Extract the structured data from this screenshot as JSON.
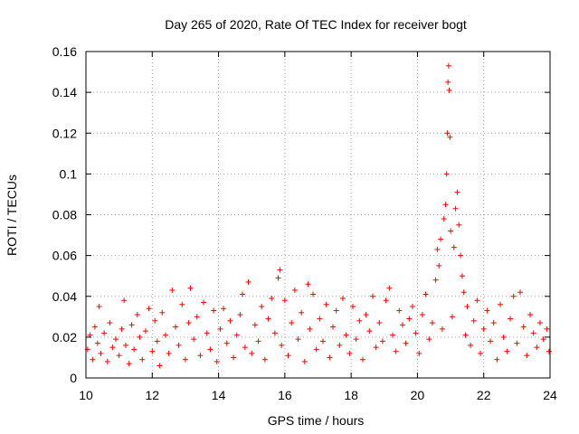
{
  "chart_data": {
    "type": "scatter",
    "title": "Day 265 of 2020, Rate Of TEC Index for receiver bogt",
    "xlabel": "GPS time / hours",
    "ylabel": "ROTI / TECUs",
    "xlim": [
      10,
      24
    ],
    "ylim": [
      0,
      0.16
    ],
    "xticks": [
      "10",
      "12",
      "14",
      "16",
      "18",
      "20",
      "22",
      "24"
    ],
    "yticks": [
      "0",
      "0.02",
      "0.04",
      "0.06",
      "0.08",
      "0.1",
      "0.12",
      "0.14",
      "0.16"
    ],
    "grid": true,
    "marker": "+",
    "series_color": "#ff0000",
    "series": [
      {
        "name": "ROTI",
        "points": [
          [
            10.05,
            0.014
          ],
          [
            10.12,
            0.021
          ],
          [
            10.2,
            0.009
          ],
          [
            10.27,
            0.025
          ],
          [
            10.35,
            0.017
          ],
          [
            10.4,
            0.035
          ],
          [
            10.45,
            0.012
          ],
          [
            10.55,
            0.022
          ],
          [
            10.65,
            0.008
          ],
          [
            10.72,
            0.027
          ],
          [
            10.8,
            0.015
          ],
          [
            10.9,
            0.019
          ],
          [
            11.0,
            0.011
          ],
          [
            11.08,
            0.024
          ],
          [
            11.15,
            0.038
          ],
          [
            11.2,
            0.016
          ],
          [
            11.3,
            0.007
          ],
          [
            11.38,
            0.026
          ],
          [
            11.45,
            0.014
          ],
          [
            11.55,
            0.031
          ],
          [
            11.62,
            0.02
          ],
          [
            11.7,
            0.009
          ],
          [
            11.8,
            0.023
          ],
          [
            11.9,
            0.034
          ],
          [
            12.0,
            0.013
          ],
          [
            12.08,
            0.028
          ],
          [
            12.15,
            0.018
          ],
          [
            12.22,
            0.006
          ],
          [
            12.3,
            0.032
          ],
          [
            12.4,
            0.021
          ],
          [
            12.5,
            0.012
          ],
          [
            12.6,
            0.043
          ],
          [
            12.7,
            0.025
          ],
          [
            12.8,
            0.016
          ],
          [
            12.9,
            0.036
          ],
          [
            13.0,
            0.009
          ],
          [
            13.1,
            0.027
          ],
          [
            13.15,
            0.044
          ],
          [
            13.25,
            0.019
          ],
          [
            13.35,
            0.03
          ],
          [
            13.45,
            0.011
          ],
          [
            13.55,
            0.037
          ],
          [
            13.65,
            0.022
          ],
          [
            13.75,
            0.014
          ],
          [
            13.85,
            0.033
          ],
          [
            13.95,
            0.008
          ],
          [
            14.05,
            0.024
          ],
          [
            14.15,
            0.034
          ],
          [
            14.25,
            0.017
          ],
          [
            14.35,
            0.028
          ],
          [
            14.45,
            0.01
          ],
          [
            14.55,
            0.021
          ],
          [
            14.65,
            0.031
          ],
          [
            14.72,
            0.041
          ],
          [
            14.8,
            0.015
          ],
          [
            14.9,
            0.047
          ],
          [
            15.0,
            0.012
          ],
          [
            15.1,
            0.026
          ],
          [
            15.2,
            0.018
          ],
          [
            15.3,
            0.035
          ],
          [
            15.4,
            0.009
          ],
          [
            15.5,
            0.029
          ],
          [
            15.6,
            0.039
          ],
          [
            15.7,
            0.022
          ],
          [
            15.8,
            0.049
          ],
          [
            15.85,
            0.053
          ],
          [
            15.9,
            0.016
          ],
          [
            16.0,
            0.038
          ],
          [
            16.1,
            0.011
          ],
          [
            16.2,
            0.027
          ],
          [
            16.3,
            0.043
          ],
          [
            16.4,
            0.019
          ],
          [
            16.5,
            0.032
          ],
          [
            16.6,
            0.008
          ],
          [
            16.7,
            0.046
          ],
          [
            16.75,
            0.024
          ],
          [
            16.85,
            0.041
          ],
          [
            16.95,
            0.014
          ],
          [
            17.05,
            0.029
          ],
          [
            17.15,
            0.018
          ],
          [
            17.25,
            0.036
          ],
          [
            17.35,
            0.01
          ],
          [
            17.45,
            0.025
          ],
          [
            17.55,
            0.033
          ],
          [
            17.65,
            0.016
          ],
          [
            17.75,
            0.039
          ],
          [
            17.85,
            0.021
          ],
          [
            17.95,
            0.012
          ],
          [
            18.05,
            0.035
          ],
          [
            18.15,
            0.019
          ],
          [
            18.25,
            0.028
          ],
          [
            18.35,
            0.009
          ],
          [
            18.45,
            0.031
          ],
          [
            18.55,
            0.023
          ],
          [
            18.65,
            0.04
          ],
          [
            18.75,
            0.015
          ],
          [
            18.85,
            0.027
          ],
          [
            18.95,
            0.018
          ],
          [
            19.05,
            0.038
          ],
          [
            19.15,
            0.044
          ],
          [
            19.25,
            0.021
          ],
          [
            19.35,
            0.013
          ],
          [
            19.45,
            0.033
          ],
          [
            19.55,
            0.026
          ],
          [
            19.65,
            0.017
          ],
          [
            19.75,
            0.029
          ],
          [
            19.85,
            0.035
          ],
          [
            19.95,
            0.022
          ],
          [
            20.05,
            0.012
          ],
          [
            20.15,
            0.031
          ],
          [
            20.25,
            0.041
          ],
          [
            20.35,
            0.019
          ],
          [
            20.45,
            0.027
          ],
          [
            20.55,
            0.048
          ],
          [
            20.6,
            0.063
          ],
          [
            20.65,
            0.055
          ],
          [
            20.7,
            0.068
          ],
          [
            20.75,
            0.024
          ],
          [
            20.8,
            0.078
          ],
          [
            20.85,
            0.085
          ],
          [
            20.88,
            0.1
          ],
          [
            20.9,
            0.12
          ],
          [
            20.92,
            0.145
          ],
          [
            20.94,
            0.153
          ],
          [
            20.96,
            0.141
          ],
          [
            20.98,
            0.118
          ],
          [
            21.0,
            0.072
          ],
          [
            21.05,
            0.03
          ],
          [
            21.1,
            0.064
          ],
          [
            21.15,
            0.083
          ],
          [
            21.2,
            0.091
          ],
          [
            21.25,
            0.075
          ],
          [
            21.3,
            0.06
          ],
          [
            21.35,
            0.05
          ],
          [
            21.4,
            0.042
          ],
          [
            21.45,
            0.021
          ],
          [
            21.5,
            0.035
          ],
          [
            21.6,
            0.016
          ],
          [
            21.7,
            0.028
          ],
          [
            21.8,
            0.038
          ],
          [
            21.9,
            0.012
          ],
          [
            22.0,
            0.024
          ],
          [
            22.1,
            0.033
          ],
          [
            22.2,
            0.018
          ],
          [
            22.3,
            0.027
          ],
          [
            22.4,
            0.009
          ],
          [
            22.5,
            0.036
          ],
          [
            22.6,
            0.02
          ],
          [
            22.7,
            0.013
          ],
          [
            22.8,
            0.029
          ],
          [
            22.9,
            0.04
          ],
          [
            23.0,
            0.017
          ],
          [
            23.1,
            0.042
          ],
          [
            23.2,
            0.025
          ],
          [
            23.3,
            0.011
          ],
          [
            23.4,
            0.031
          ],
          [
            23.5,
            0.022
          ],
          [
            23.6,
            0.015
          ],
          [
            23.7,
            0.027
          ],
          [
            23.8,
            0.019
          ],
          [
            23.9,
            0.024
          ],
          [
            23.97,
            0.013
          ]
        ]
      }
    ]
  }
}
